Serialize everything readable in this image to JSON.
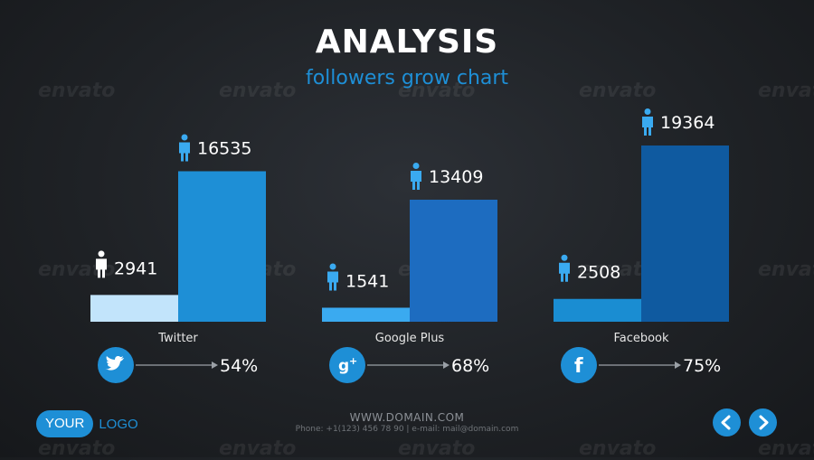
{
  "header": {
    "title": "ANALYSIS",
    "subtitle": "followers grow chart"
  },
  "watermark_text": "envato",
  "chart_data": {
    "type": "bar",
    "title": "ANALYSIS",
    "subtitle": "followers grow chart",
    "ylim": [
      0,
      19364
    ],
    "groups": [
      {
        "category": "Twitter",
        "values": [
          2941,
          16535
        ],
        "percent": "54%",
        "icon": "twitter-icon",
        "colors": [
          "#c2e4fb",
          "#1e8fd6"
        ]
      },
      {
        "category": "Google Plus",
        "values": [
          1541,
          13409
        ],
        "percent": "68%",
        "icon": "google-plus-icon",
        "colors": [
          "#3aaaf0",
          "#1d6cc0"
        ]
      },
      {
        "category": "Facebook",
        "values": [
          2508,
          19364
        ],
        "percent": "75%",
        "icon": "facebook-icon",
        "colors": [
          "#1a8dd2",
          "#0f5aa0"
        ]
      }
    ]
  },
  "footer": {
    "domain": "WWW.DOMAIN.COM",
    "contact": "Phone: +1(123) 456 78 90 | e-mail: mail@domain.com",
    "logo_primary": "YOUR",
    "logo_secondary": "LOGO"
  },
  "colors": {
    "accent": "#1e8fd6",
    "person_icon_light": "#ffffff",
    "person_icon_dark": "#3aaaf0"
  }
}
